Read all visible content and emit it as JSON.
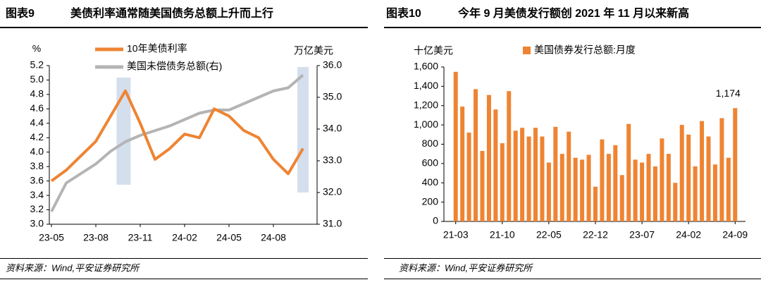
{
  "chart_data": [
    {
      "type": "line",
      "title_label": "图表9",
      "title": "美债利率通常随美国债务总额上升而上行",
      "y_label": "%",
      "y2_label": "万亿美元",
      "x": [
        "23-05",
        null,
        null,
        "23-08",
        null,
        null,
        "23-11",
        null,
        null,
        "24-02",
        null,
        null,
        "24-05",
        null,
        null,
        "24-08",
        null,
        null
      ],
      "series": [
        {
          "name": "10年美债利率",
          "color": "#ee8433",
          "values": [
            3.6,
            3.75,
            3.95,
            4.15,
            4.5,
            4.85,
            4.4,
            3.9,
            4.05,
            4.25,
            4.2,
            4.6,
            4.5,
            4.3,
            4.2,
            3.9,
            3.7,
            4.05
          ]
        },
        {
          "name": "美国未偿债务总额(右)",
          "color": "#b4b4b4",
          "axis": "y2",
          "values": [
            31.4,
            32.3,
            32.6,
            32.9,
            33.3,
            33.6,
            33.8,
            33.95,
            34.1,
            34.3,
            34.5,
            34.6,
            34.6,
            34.8,
            35.0,
            35.2,
            35.3,
            35.7
          ]
        }
      ],
      "ylim": [
        3.0,
        5.2
      ],
      "yticks": [
        {
          "value": 3,
          "label": "3.0"
        },
        3.2,
        3.4,
        3.6,
        3.8,
        {
          "value": 4,
          "label": "4.0"
        },
        4.2,
        4.4,
        4.6,
        4.8,
        {
          "value": 5,
          "label": "5.0"
        },
        5.2
      ],
      "y2lim": [
        31.0,
        36.0
      ],
      "y2ticks": [
        {
          "value": 31,
          "label": "31.0"
        },
        {
          "value": 32,
          "label": "32.0"
        },
        {
          "value": 33,
          "label": "33.0"
        },
        {
          "value": 34,
          "label": "34.0"
        },
        {
          "value": 35,
          "label": "35.0"
        },
        {
          "value": 36,
          "label": "36.0"
        }
      ],
      "source": "资料来源：Wind,平安证券研究所"
    },
    {
      "type": "bar",
      "title_label": "图表10",
      "title": "今年 9 月美债发行额创 2021 年 11 月以来新高",
      "y_label": "十亿美元",
      "legend": "美国债券发行总额:月度",
      "color": "#ee8433",
      "categories": [
        "21-03",
        null,
        null,
        null,
        null,
        null,
        null,
        "21-10",
        null,
        null,
        null,
        null,
        null,
        null,
        "22-05",
        null,
        null,
        null,
        null,
        null,
        null,
        "22-12",
        null,
        null,
        null,
        null,
        null,
        null,
        "23-07",
        null,
        null,
        null,
        null,
        null,
        null,
        "24-02",
        null,
        null,
        null,
        null,
        null,
        null,
        "24-09"
      ],
      "values": [
        1550,
        1190,
        920,
        1370,
        730,
        1310,
        1160,
        810,
        1350,
        940,
        970,
        880,
        970,
        880,
        610,
        980,
        700,
        930,
        660,
        640,
        690,
        360,
        850,
        700,
        790,
        480,
        1010,
        640,
        610,
        700,
        570,
        860,
        700,
        400,
        1000,
        900,
        570,
        1040,
        880,
        590,
        1070,
        660,
        1174
      ],
      "value_labels": [
        null,
        null,
        null,
        null,
        null,
        null,
        null,
        null,
        null,
        null,
        null,
        null,
        null,
        null,
        null,
        null,
        null,
        null,
        null,
        null,
        null,
        null,
        null,
        null,
        null,
        null,
        null,
        null,
        null,
        null,
        null,
        null,
        null,
        null,
        null,
        null,
        null,
        null,
        null,
        null,
        null,
        null,
        "1,174"
      ],
      "ylim": [
        0,
        1600
      ],
      "yticks": [
        0,
        200,
        400,
        600,
        800,
        {
          "value": 1000,
          "label": "1,000"
        },
        {
          "value": 1200,
          "label": "1,200"
        },
        {
          "value": 1400,
          "label": "1,400"
        },
        {
          "value": 1600,
          "label": "1,600"
        }
      ],
      "source": "资料来源：Wind,平安证券研究所"
    }
  ]
}
